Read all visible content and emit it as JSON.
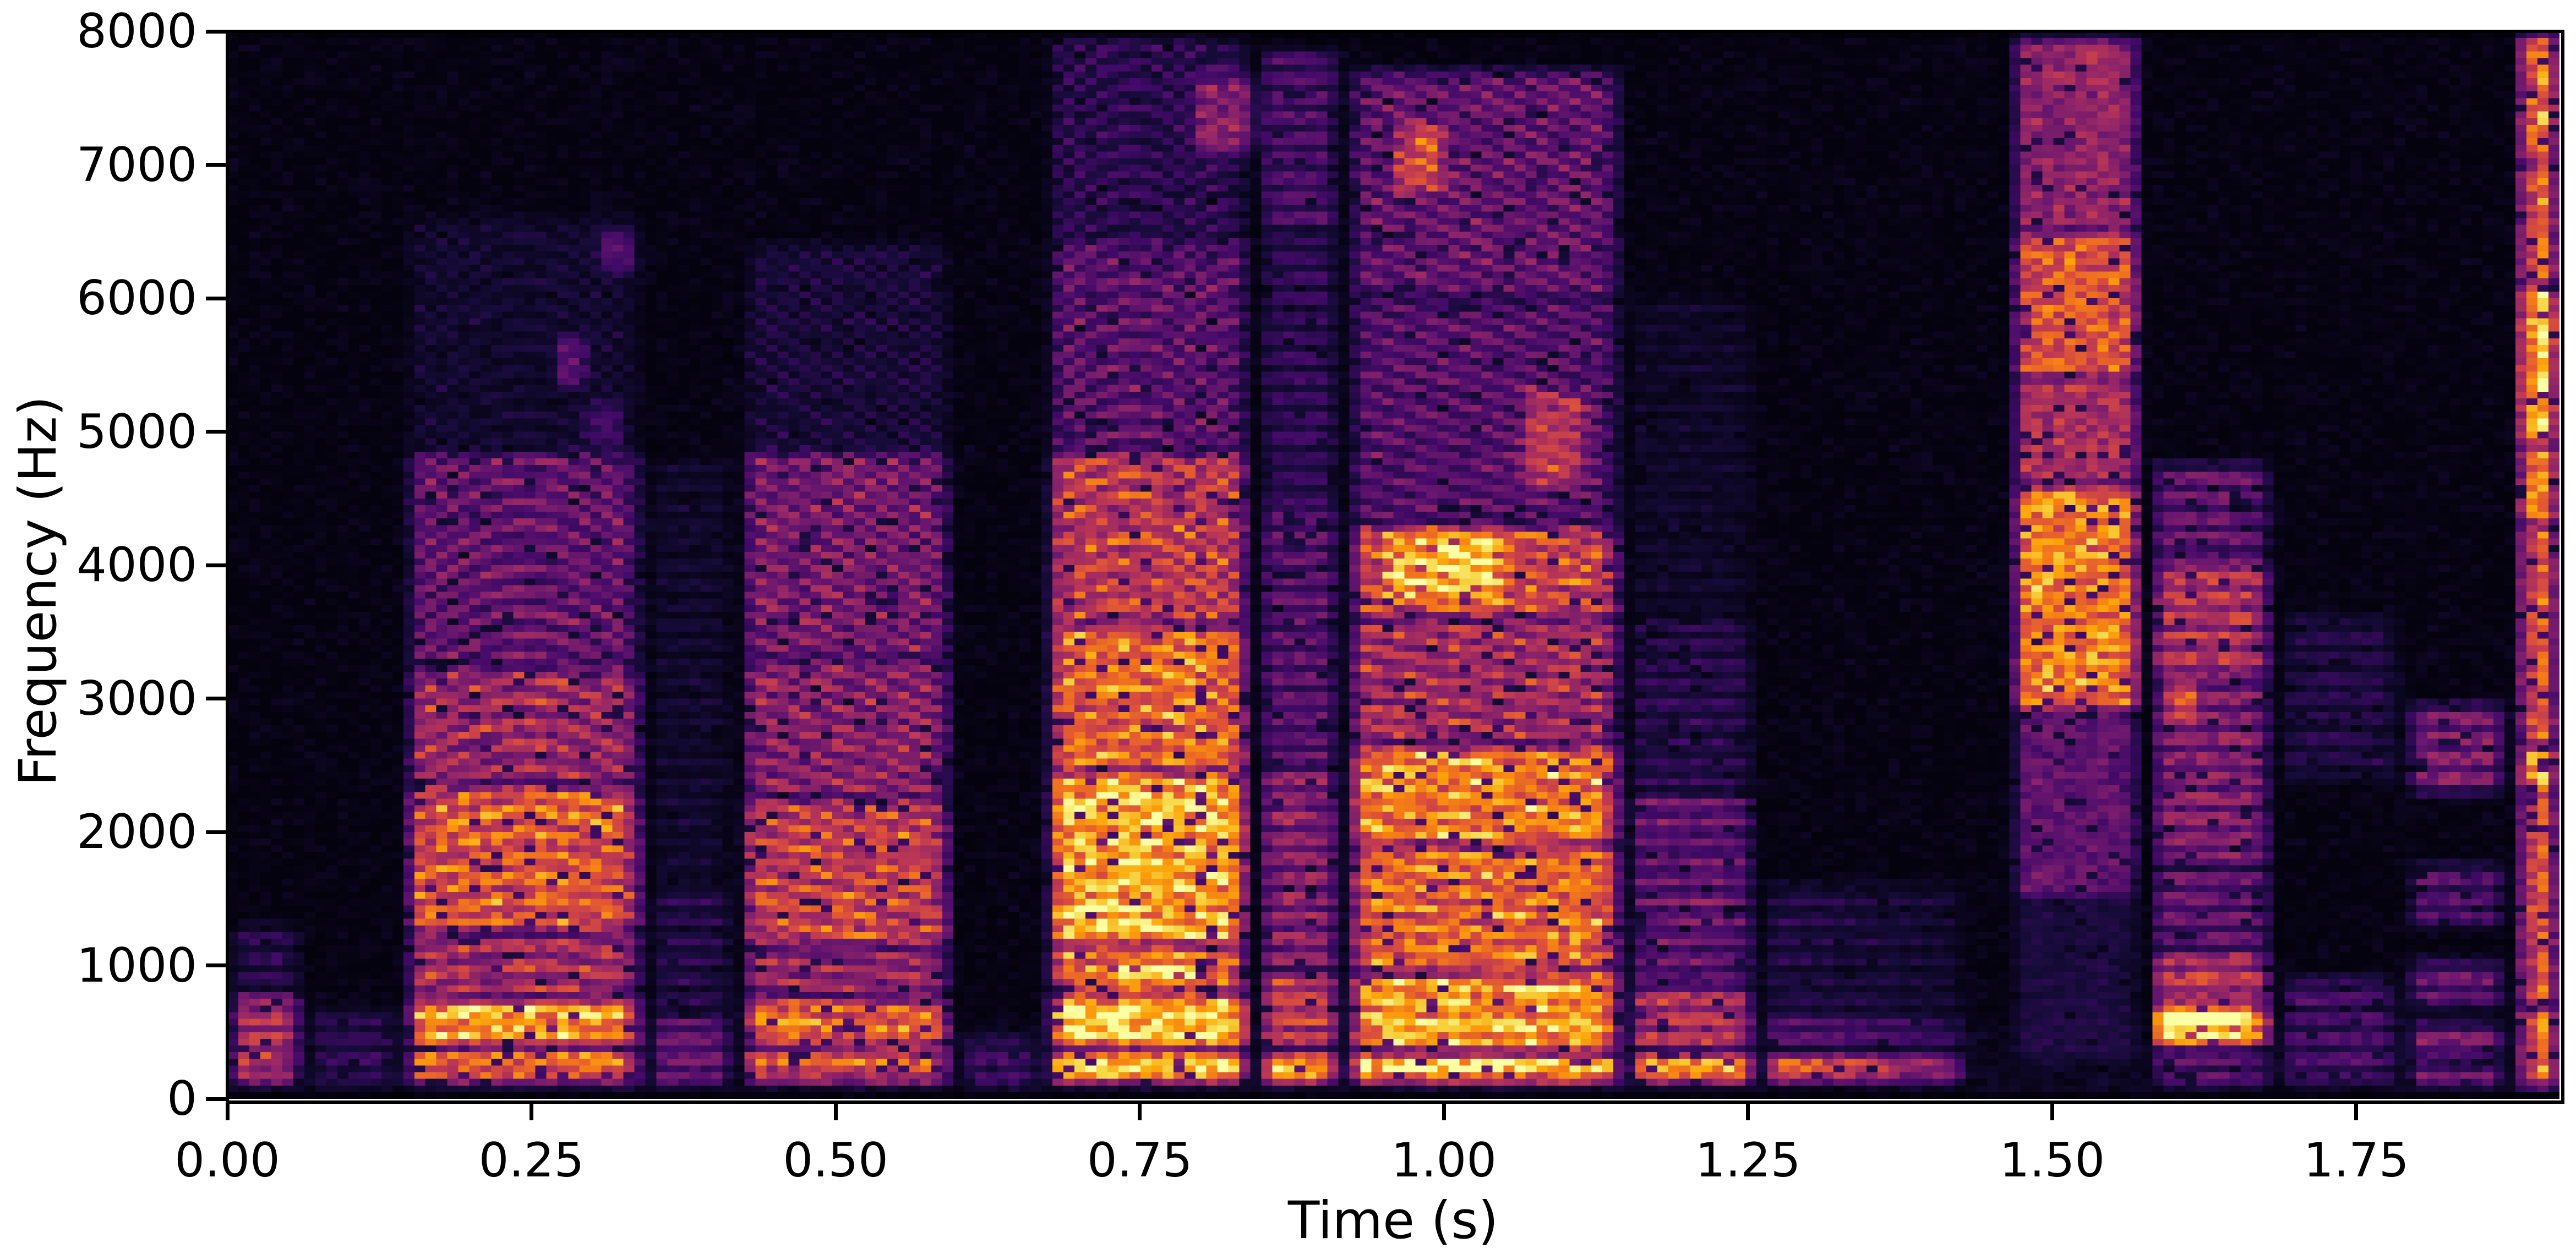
{
  "figure": {
    "background": "#ffffff",
    "plot_background": "#000004"
  },
  "chart_data": {
    "type": "heatmap",
    "subtype": "spectrogram",
    "title": "",
    "xlabel": "Time (s)",
    "ylabel": "Frequency (Hz)",
    "x_range": [
      0.0,
      1.917
    ],
    "y_range": [
      0,
      8000
    ],
    "x_ticks": [
      {
        "value": 0.0,
        "label": "0.00"
      },
      {
        "value": 0.25,
        "label": "0.25"
      },
      {
        "value": 0.5,
        "label": "0.50"
      },
      {
        "value": 0.75,
        "label": "0.75"
      },
      {
        "value": 1.0,
        "label": "1.00"
      },
      {
        "value": 1.25,
        "label": "1.25"
      },
      {
        "value": 1.5,
        "label": "1.50"
      },
      {
        "value": 1.75,
        "label": "1.75"
      }
    ],
    "y_ticks": [
      {
        "value": 0,
        "label": "0"
      },
      {
        "value": 1000,
        "label": "1000"
      },
      {
        "value": 2000,
        "label": "2000"
      },
      {
        "value": 3000,
        "label": "3000"
      },
      {
        "value": 4000,
        "label": "4000"
      },
      {
        "value": 5000,
        "label": "5000"
      },
      {
        "value": 6000,
        "label": "6000"
      },
      {
        "value": 7000,
        "label": "7000"
      },
      {
        "value": 8000,
        "label": "8000"
      }
    ],
    "grid_on": false,
    "legend": "none",
    "colormap": "inferno",
    "colormap_stops": [
      [
        0.0,
        "#000004"
      ],
      [
        0.1,
        "#160b39"
      ],
      [
        0.2,
        "#420a68"
      ],
      [
        0.3,
        "#6a176e"
      ],
      [
        0.4,
        "#932667"
      ],
      [
        0.5,
        "#bc3754"
      ],
      [
        0.6,
        "#dd513a"
      ],
      [
        0.7,
        "#f37819"
      ],
      [
        0.8,
        "#fca50a"
      ],
      [
        0.9,
        "#f6d746"
      ],
      [
        1.0,
        "#fcffa4"
      ]
    ],
    "grid": {
      "cols": 212,
      "rows": 160,
      "seed": 77
    },
    "f0_default": 150,
    "segments": [
      {
        "name": "initial-low-murmur",
        "t0": 0.0,
        "t1": 0.065,
        "voiced": true,
        "f0": 150,
        "bands": [
          [
            120,
            780,
            0.5
          ],
          [
            780,
            1300,
            0.14
          ]
        ]
      },
      {
        "name": "pause-1",
        "t0": 0.065,
        "t1": 0.145,
        "voiced": true,
        "f0": 150,
        "bands": [
          [
            100,
            650,
            0.13
          ]
        ]
      },
      {
        "name": "vowel-1-arch",
        "t0": 0.145,
        "t1": 0.345,
        "voiced": true,
        "f0": 148,
        "pitch_arch": 0.12,
        "bands": [
          [
            130,
            380,
            0.72
          ],
          [
            380,
            760,
            0.82
          ],
          [
            760,
            1250,
            0.5
          ],
          [
            1250,
            2350,
            0.68
          ],
          [
            2350,
            3250,
            0.48
          ],
          [
            3250,
            4850,
            0.32
          ],
          [
            4850,
            6600,
            0.07
          ]
        ]
      },
      {
        "name": "weak-link-1",
        "t0": 0.345,
        "t1": 0.42,
        "voiced": true,
        "f0": 148,
        "bands": [
          [
            100,
            620,
            0.3
          ],
          [
            620,
            1600,
            0.12
          ],
          [
            1600,
            4800,
            0.06
          ]
        ]
      },
      {
        "name": "vowel-2-falling",
        "t0": 0.42,
        "t1": 0.6,
        "voiced": true,
        "f0": 152,
        "pitch_slope": -0.18,
        "bands": [
          [
            130,
            400,
            0.62
          ],
          [
            400,
            760,
            0.72
          ],
          [
            760,
            1150,
            0.45
          ],
          [
            1150,
            2250,
            0.6
          ],
          [
            2250,
            3300,
            0.42
          ],
          [
            3300,
            4850,
            0.38
          ],
          [
            4850,
            6400,
            0.1
          ]
        ]
      },
      {
        "name": "gap-1",
        "t0": 0.6,
        "t1": 0.672,
        "voiced": true,
        "f0": 150,
        "bands": [
          [
            100,
            450,
            0.18
          ]
        ]
      },
      {
        "name": "vowel-3-strong-arch",
        "t0": 0.672,
        "t1": 0.845,
        "voiced": true,
        "f0": 152,
        "pitch_arch": 0.1,
        "pitch_slope": -0.08,
        "bands": [
          [
            140,
            340,
            1.0
          ],
          [
            380,
            780,
            0.98
          ],
          [
            780,
            1150,
            0.72
          ],
          [
            1150,
            2450,
            0.88
          ],
          [
            2450,
            3550,
            0.72
          ],
          [
            3550,
            4850,
            0.58
          ],
          [
            4850,
            6450,
            0.3
          ],
          [
            6450,
            7950,
            0.16
          ]
        ]
      },
      {
        "name": "link-2",
        "t0": 0.845,
        "t1": 0.92,
        "voiced": true,
        "f0": 150,
        "bands": [
          [
            140,
            330,
            0.95
          ],
          [
            380,
            950,
            0.55
          ],
          [
            950,
            2500,
            0.4
          ],
          [
            2500,
            4500,
            0.28
          ],
          [
            4500,
            6500,
            0.16
          ],
          [
            6500,
            7850,
            0.24
          ]
        ]
      },
      {
        "name": "vowel-4-strong",
        "t0": 0.92,
        "t1": 1.15,
        "voiced": true,
        "f0": 148,
        "pitch_slope": -0.12,
        "bands": [
          [
            140,
            330,
            1.0
          ],
          [
            360,
            950,
            0.85
          ],
          [
            950,
            1900,
            0.72
          ],
          [
            1900,
            2650,
            0.78
          ],
          [
            2650,
            3600,
            0.5
          ],
          [
            3600,
            4300,
            0.62
          ],
          [
            4300,
            6000,
            0.28
          ],
          [
            6000,
            7700,
            0.32
          ]
        ]
      },
      {
        "name": "tail-1",
        "t0": 1.15,
        "t1": 1.26,
        "voiced": true,
        "f0": 148,
        "bands": [
          [
            140,
            330,
            0.92
          ],
          [
            360,
            850,
            0.5
          ],
          [
            850,
            2300,
            0.3
          ],
          [
            2300,
            3600,
            0.14
          ],
          [
            3600,
            6000,
            0.05
          ]
        ]
      },
      {
        "name": "tail-2-low-line",
        "t0": 1.26,
        "t1": 1.435,
        "voiced": true,
        "f0": 148,
        "fade": 0.45,
        "bands": [
          [
            150,
            320,
            0.82
          ],
          [
            380,
            620,
            0.3
          ],
          [
            620,
            1600,
            0.12
          ]
        ]
      },
      {
        "name": "fricative",
        "t0": 1.465,
        "t1": 1.578,
        "voiced": false,
        "bands": [
          [
            300,
            1500,
            0.08
          ],
          [
            1500,
            2900,
            0.26
          ],
          [
            2900,
            4600,
            0.72
          ],
          [
            4600,
            5400,
            0.45
          ],
          [
            5400,
            6500,
            0.6
          ],
          [
            6500,
            7950,
            0.38
          ]
        ]
      },
      {
        "name": "vowel-5",
        "t0": 1.578,
        "t1": 1.685,
        "voiced": true,
        "f0": 150,
        "bands": [
          [
            100,
            360,
            0.25
          ],
          [
            400,
            720,
            0.88
          ],
          [
            720,
            1120,
            0.52
          ],
          [
            1120,
            1750,
            0.3
          ],
          [
            1750,
            3150,
            0.38
          ],
          [
            3150,
            4050,
            0.52
          ],
          [
            4050,
            4750,
            0.3
          ]
        ]
      },
      {
        "name": "tail-3",
        "t0": 1.685,
        "t1": 1.79,
        "voiced": true,
        "f0": 150,
        "bands": [
          [
            130,
            900,
            0.2
          ],
          [
            2400,
            3600,
            0.12
          ]
        ]
      },
      {
        "name": "pre-final-dashes",
        "t0": 1.79,
        "t1": 1.878,
        "voiced": true,
        "f0": 150,
        "bands": [
          [
            100,
            260,
            0.32
          ],
          [
            300,
            560,
            0.32
          ],
          [
            700,
            1020,
            0.3
          ],
          [
            1300,
            1750,
            0.24
          ],
          [
            2300,
            2950,
            0.36
          ]
        ]
      },
      {
        "name": "final-burst",
        "t0": 1.878,
        "t1": 1.92,
        "voiced": false,
        "edge_boost": true,
        "bands": [
          [
            100,
            700,
            0.55
          ],
          [
            700,
            2300,
            0.5
          ],
          [
            2300,
            2650,
            0.72
          ],
          [
            2650,
            4300,
            0.52
          ],
          [
            4300,
            4900,
            0.66
          ],
          [
            4900,
            6100,
            0.78
          ],
          [
            6100,
            7000,
            0.55
          ],
          [
            7000,
            8000,
            0.58
          ]
        ]
      }
    ],
    "blobs": [
      {
        "t": [
          0.265,
          0.3
        ],
        "f": [
          5350,
          5700
        ],
        "a": 0.18
      },
      {
        "t": [
          0.3,
          0.34
        ],
        "f": [
          6200,
          6500
        ],
        "a": 0.14
      },
      {
        "t": [
          0.29,
          0.33
        ],
        "f": [
          4900,
          5200
        ],
        "a": 0.12
      },
      {
        "t": [
          0.72,
          0.8
        ],
        "f": [
          880,
          1030
        ],
        "a": 0.3
      },
      {
        "t": [
          0.79,
          0.85
        ],
        "f": [
          7100,
          7650
        ],
        "a": 0.22
      },
      {
        "t": [
          0.955,
          1.005
        ],
        "f": [
          6800,
          7300
        ],
        "a": 0.3
      },
      {
        "t": [
          0.95,
          1.05
        ],
        "f": [
          3750,
          4250
        ],
        "a": 0.35
      },
      {
        "t": [
          1.06,
          1.12
        ],
        "f": [
          4600,
          5300
        ],
        "a": 0.25
      },
      {
        "t": [
          1.59,
          1.625
        ],
        "f": [
          2850,
          3150
        ],
        "a": 0.25
      },
      {
        "t": [
          1.58,
          1.66
        ],
        "f": [
          430,
          680
        ],
        "a": 0.28
      }
    ]
  }
}
